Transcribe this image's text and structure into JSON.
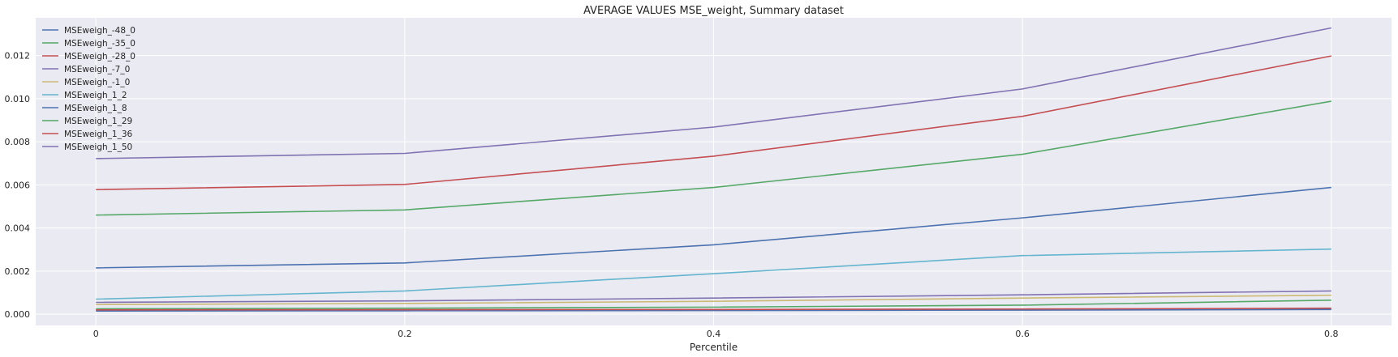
{
  "chart_data": {
    "type": "line",
    "title": "AVERAGE VALUES MSE_weight, Summary dataset",
    "xlabel": "Percentile",
    "ylabel": "",
    "x": [
      0,
      0.2,
      0.4,
      0.6,
      0.8
    ],
    "x_ticks": [
      "0",
      "0.2",
      "0.4",
      "0.6",
      "0.8"
    ],
    "y_ticks": [
      "0.000",
      "0.002",
      "0.004",
      "0.006",
      "0.008",
      "0.010",
      "0.012"
    ],
    "xlim": [
      -0.039,
      0.839
    ],
    "ylim": [
      -0.00052,
      0.01375
    ],
    "grid": true,
    "legend_position": "top-left",
    "background_color": "#eaeaf2",
    "series": [
      {
        "name": "MSEweigh_-48_0",
        "color": "#4c72b0",
        "values": [
          0.00015,
          0.00016,
          0.00017,
          0.00019,
          0.00022
        ]
      },
      {
        "name": "MSEweigh_-35_0",
        "color": "#55a868",
        "values": [
          0.00025,
          0.00028,
          0.00033,
          0.00042,
          0.00065
        ]
      },
      {
        "name": "MSEweigh_-28_0",
        "color": "#c44e52",
        "values": [
          0.0002,
          0.00021,
          0.00022,
          0.00024,
          0.00028
        ]
      },
      {
        "name": "MSEweigh_-7_0",
        "color": "#8172b2",
        "values": [
          0.00055,
          0.00062,
          0.00075,
          0.0009,
          0.00108
        ]
      },
      {
        "name": "MSEweigh_-1_0",
        "color": "#ccb974",
        "values": [
          0.00045,
          0.0005,
          0.0006,
          0.00075,
          0.00088
        ]
      },
      {
        "name": "MSEweigh_1_2",
        "color": "#64b5cd",
        "values": [
          0.0007,
          0.00108,
          0.00188,
          0.00272,
          0.00302
        ]
      },
      {
        "name": "MSEweigh_1_8",
        "color": "#4c72b0",
        "values": [
          0.00215,
          0.00238,
          0.00322,
          0.00447,
          0.00588
        ]
      },
      {
        "name": "MSEweigh_1_29",
        "color": "#55a868",
        "values": [
          0.0046,
          0.00484,
          0.00588,
          0.00742,
          0.00988
        ]
      },
      {
        "name": "MSEweigh_1_36",
        "color": "#c44e52",
        "values": [
          0.00578,
          0.00602,
          0.00733,
          0.00918,
          0.01198
        ]
      },
      {
        "name": "MSEweigh_1_50",
        "color": "#8172b2",
        "values": [
          0.00722,
          0.00746,
          0.00868,
          0.01045,
          0.01328
        ]
      }
    ]
  }
}
